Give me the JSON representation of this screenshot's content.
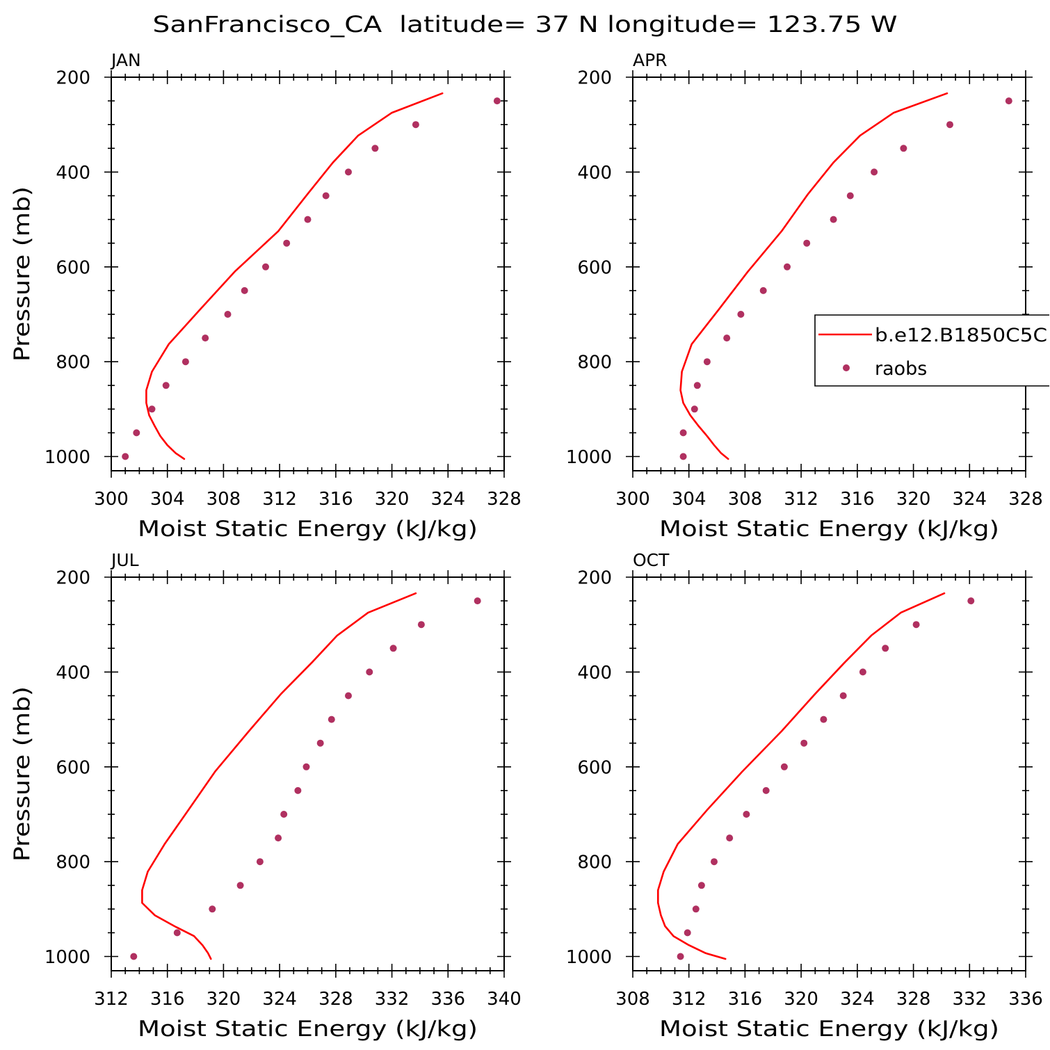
{
  "title": "SanFrancisco_CA  latitude= 37 N longitude= 123.75 W",
  "chart_data": [
    {
      "type": "line",
      "title": "JAN",
      "xlabel": "Moist Static Energy (kJ/kg)",
      "ylabel": "Pressure (mb)",
      "xlim": [
        300,
        328
      ],
      "ylim": [
        200,
        1030
      ],
      "y_inverted": true,
      "grid": false,
      "xticks": [
        300,
        304,
        308,
        312,
        316,
        320,
        324,
        328
      ],
      "yticks": [
        200,
        400,
        600,
        800,
        1000
      ],
      "series": [
        {
          "type": "line",
          "color": "#ff0000",
          "points": [
            [
              323.6,
              234
            ],
            [
              320.0,
              275
            ],
            [
              317.6,
              323
            ],
            [
              315.8,
              380
            ],
            [
              314.0,
              446
            ],
            [
              311.9,
              525
            ],
            [
              308.8,
              610
            ],
            [
              306.3,
              691
            ],
            [
              304.1,
              763
            ],
            [
              302.9,
              821
            ],
            [
              302.5,
              860
            ],
            [
              302.5,
              887
            ],
            [
              302.7,
              913
            ],
            [
              303.1,
              936
            ],
            [
              303.5,
              957
            ],
            [
              304.0,
              976
            ],
            [
              304.6,
              993
            ],
            [
              305.2,
              1005
            ]
          ]
        },
        {
          "type": "scatter",
          "color": "#b03060",
          "points": [
            [
              327.5,
              250
            ],
            [
              321.7,
              300
            ],
            [
              318.8,
              350
            ],
            [
              316.9,
              400
            ],
            [
              315.3,
              450
            ],
            [
              314.0,
              500
            ],
            [
              312.5,
              550
            ],
            [
              311.0,
              600
            ],
            [
              309.5,
              650
            ],
            [
              308.3,
              700
            ],
            [
              306.7,
              750
            ],
            [
              305.3,
              800
            ],
            [
              303.9,
              850
            ],
            [
              302.9,
              900
            ],
            [
              301.8,
              950
            ],
            [
              301.0,
              1000
            ]
          ]
        }
      ]
    },
    {
      "type": "line",
      "title": "APR",
      "xlabel": "Moist Static Energy (kJ/kg)",
      "xlim": [
        300,
        328
      ],
      "ylim": [
        200,
        1030
      ],
      "y_inverted": true,
      "grid": false,
      "legend": "right",
      "xticks": [
        300,
        304,
        308,
        312,
        316,
        320,
        324,
        328
      ],
      "yticks": [
        200,
        400,
        600,
        800,
        1000
      ],
      "series": [
        {
          "name": "b.e12.B1850C5C",
          "type": "line",
          "color": "#ff0000",
          "points": [
            [
              322.4,
              234
            ],
            [
              318.6,
              275
            ],
            [
              316.2,
              323
            ],
            [
              314.3,
              380
            ],
            [
              312.5,
              446
            ],
            [
              310.6,
              525
            ],
            [
              308.2,
              610
            ],
            [
              306.1,
              691
            ],
            [
              304.2,
              763
            ],
            [
              303.5,
              821
            ],
            [
              303.4,
              860
            ],
            [
              303.6,
              887
            ],
            [
              304.1,
              913
            ],
            [
              304.7,
              936
            ],
            [
              305.3,
              957
            ],
            [
              305.8,
              976
            ],
            [
              306.3,
              993
            ],
            [
              306.8,
              1005
            ]
          ]
        },
        {
          "name": "raobs",
          "type": "scatter",
          "color": "#b03060",
          "points": [
            [
              326.8,
              250
            ],
            [
              322.6,
              300
            ],
            [
              319.3,
              350
            ],
            [
              317.2,
              400
            ],
            [
              315.5,
              450
            ],
            [
              314.3,
              500
            ],
            [
              312.4,
              550
            ],
            [
              311.0,
              600
            ],
            [
              309.3,
              650
            ],
            [
              307.7,
              700
            ],
            [
              306.7,
              750
            ],
            [
              305.3,
              800
            ],
            [
              304.6,
              850
            ],
            [
              304.4,
              900
            ],
            [
              303.6,
              950
            ],
            [
              303.6,
              1000
            ]
          ]
        }
      ]
    },
    {
      "type": "line",
      "title": "JUL",
      "xlabel": "Moist Static Energy (kJ/kg)",
      "ylabel": "Pressure (mb)",
      "xlim": [
        312,
        340
      ],
      "ylim": [
        200,
        1030
      ],
      "y_inverted": true,
      "grid": false,
      "xticks": [
        312,
        316,
        320,
        324,
        328,
        332,
        336,
        340
      ],
      "yticks": [
        200,
        400,
        600,
        800,
        1000
      ],
      "series": [
        {
          "type": "line",
          "color": "#ff0000",
          "points": [
            [
              333.7,
              234
            ],
            [
              330.3,
              275
            ],
            [
              328.1,
              323
            ],
            [
              326.3,
              380
            ],
            [
              324.1,
              446
            ],
            [
              321.8,
              525
            ],
            [
              319.4,
              610
            ],
            [
              317.5,
              691
            ],
            [
              315.8,
              763
            ],
            [
              314.6,
              821
            ],
            [
              314.2,
              860
            ],
            [
              314.2,
              887
            ],
            [
              315.1,
              913
            ],
            [
              316.5,
              936
            ],
            [
              317.9,
              957
            ],
            [
              318.5,
              976
            ],
            [
              318.9,
              993
            ],
            [
              319.1,
              1005
            ]
          ]
        },
        {
          "type": "scatter",
          "color": "#b03060",
          "points": [
            [
              338.1,
              250
            ],
            [
              334.1,
              300
            ],
            [
              332.1,
              350
            ],
            [
              330.4,
              400
            ],
            [
              328.9,
              450
            ],
            [
              327.7,
              500
            ],
            [
              326.9,
              550
            ],
            [
              325.9,
              600
            ],
            [
              325.3,
              650
            ],
            [
              324.3,
              700
            ],
            [
              323.9,
              750
            ],
            [
              322.6,
              800
            ],
            [
              321.2,
              850
            ],
            [
              319.2,
              900
            ],
            [
              316.7,
              950
            ],
            [
              313.6,
              1000
            ]
          ]
        }
      ]
    },
    {
      "type": "line",
      "title": "OCT",
      "xlabel": "Moist Static Energy (kJ/kg)",
      "xlim": [
        308,
        336
      ],
      "ylim": [
        200,
        1030
      ],
      "y_inverted": true,
      "grid": false,
      "xticks": [
        308,
        312,
        316,
        320,
        324,
        328,
        332,
        336
      ],
      "yticks": [
        200,
        400,
        600,
        800,
        1000
      ],
      "series": [
        {
          "type": "line",
          "color": "#ff0000",
          "points": [
            [
              330.2,
              234
            ],
            [
              327.1,
              275
            ],
            [
              325.0,
              323
            ],
            [
              323.1,
              380
            ],
            [
              321.0,
              446
            ],
            [
              318.6,
              525
            ],
            [
              315.8,
              610
            ],
            [
              313.3,
              691
            ],
            [
              311.2,
              763
            ],
            [
              310.2,
              821
            ],
            [
              309.8,
              860
            ],
            [
              309.8,
              887
            ],
            [
              310.0,
              913
            ],
            [
              310.3,
              936
            ],
            [
              310.9,
              957
            ],
            [
              312.0,
              976
            ],
            [
              313.2,
              993
            ],
            [
              314.6,
              1005
            ]
          ]
        },
        {
          "type": "scatter",
          "color": "#b03060",
          "points": [
            [
              332.1,
              250
            ],
            [
              328.2,
              300
            ],
            [
              326.0,
              350
            ],
            [
              324.4,
              400
            ],
            [
              323.0,
              450
            ],
            [
              321.6,
              500
            ],
            [
              320.2,
              550
            ],
            [
              318.8,
              600
            ],
            [
              317.5,
              650
            ],
            [
              316.1,
              700
            ],
            [
              314.9,
              750
            ],
            [
              313.8,
              800
            ],
            [
              312.9,
              850
            ],
            [
              312.5,
              900
            ],
            [
              311.9,
              950
            ],
            [
              311.4,
              1000
            ]
          ]
        }
      ]
    }
  ]
}
